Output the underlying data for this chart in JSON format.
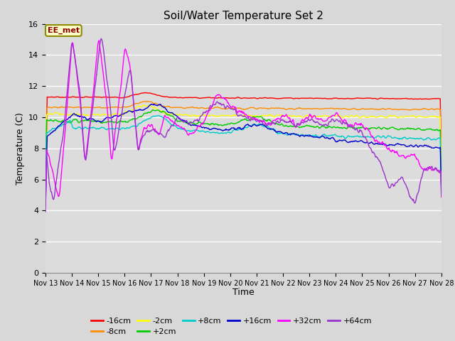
{
  "title": "Soil/Water Temperature Set 2",
  "xlabel": "Time",
  "ylabel": "Temperature (C)",
  "ylim": [
    0,
    16
  ],
  "yticks": [
    0,
    2,
    4,
    6,
    8,
    10,
    12,
    14,
    16
  ],
  "x_labels": [
    "Nov 13",
    "Nov 14",
    "Nov 15",
    "Nov 16",
    "Nov 17",
    "Nov 18",
    "Nov 19",
    "Nov 20",
    "Nov 21",
    "Nov 22",
    "Nov 23",
    "Nov 24",
    "Nov 25",
    "Nov 26",
    "Nov 27",
    "Nov 28"
  ],
  "annotation_text": "EE_met",
  "annotation_color": "#8B0000",
  "annotation_bg": "#FFFFCC",
  "annotation_border": "#8B8B00",
  "bg_color": "#DCDCDC",
  "series": [
    {
      "label": "-16cm",
      "color": "#FF0000"
    },
    {
      "label": "-8cm",
      "color": "#FF8C00"
    },
    {
      "label": "-2cm",
      "color": "#FFFF00"
    },
    {
      "label": "+2cm",
      "color": "#00CC00"
    },
    {
      "label": "+8cm",
      "color": "#00CCCC"
    },
    {
      "label": "+16cm",
      "color": "#0000CC"
    },
    {
      "label": "+32cm",
      "color": "#FF00FF"
    },
    {
      "label": "+64cm",
      "color": "#9933CC"
    }
  ],
  "figwidth": 6.4,
  "figheight": 4.8,
  "dpi": 100
}
